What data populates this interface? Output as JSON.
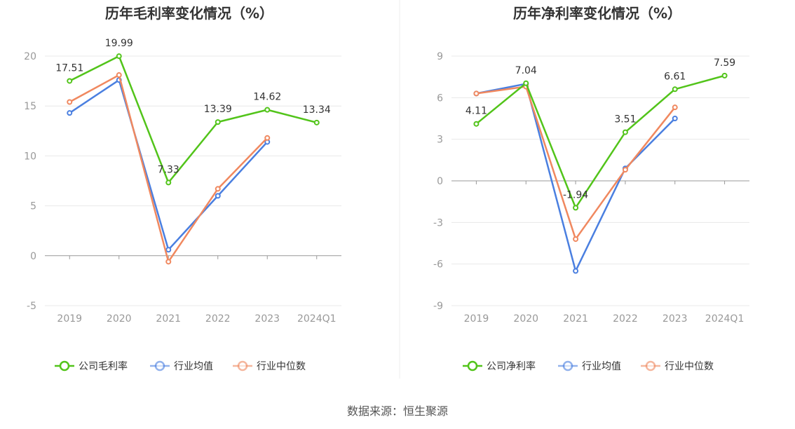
{
  "source": "数据来源：恒生聚源",
  "chart_data": [
    {
      "type": "line",
      "title": "历年毛利率变化情况（%）",
      "categories": [
        "2019",
        "2020",
        "2021",
        "2022",
        "2023",
        "2024Q1"
      ],
      "yticks": [
        20,
        15,
        10,
        5,
        0,
        -5
      ],
      "ylim": [
        -5,
        20
      ],
      "grid": true,
      "legend_position": "bottom",
      "series": [
        {
          "name": "公司毛利率",
          "color": "#52c41a",
          "values": [
            17.51,
            19.99,
            7.33,
            13.39,
            14.62,
            13.34
          ],
          "labels": [
            "17.51",
            "19.99",
            "7.33",
            "13.39",
            "14.62",
            "13.34"
          ]
        },
        {
          "name": "行业均值",
          "color": "#4a7fe0",
          "values": [
            14.3,
            17.6,
            0.6,
            6.0,
            11.4,
            null
          ]
        },
        {
          "name": "行业中位数",
          "color": "#f0885f",
          "values": [
            15.4,
            18.1,
            -0.6,
            6.7,
            11.8,
            null
          ]
        }
      ]
    },
    {
      "type": "line",
      "title": "历年净利率变化情况（%）",
      "categories": [
        "2019",
        "2020",
        "2021",
        "2022",
        "2023",
        "2024Q1"
      ],
      "yticks": [
        9,
        6,
        3,
        0,
        -3,
        -6,
        -9
      ],
      "ylim": [
        -9,
        9
      ],
      "grid": true,
      "legend_position": "bottom",
      "series": [
        {
          "name": "公司净利率",
          "color": "#52c41a",
          "values": [
            4.11,
            7.04,
            -1.94,
            3.51,
            6.61,
            7.59
          ],
          "labels": [
            "4.11",
            "7.04",
            "-1.94",
            "3.51",
            "6.61",
            "7.59"
          ]
        },
        {
          "name": "行业均值",
          "color": "#4a7fe0",
          "values": [
            6.3,
            7.0,
            -6.5,
            0.9,
            4.5,
            null
          ]
        },
        {
          "name": "行业中位数",
          "color": "#f0885f",
          "values": [
            6.3,
            6.8,
            -4.2,
            0.8,
            5.3,
            null
          ]
        }
      ]
    }
  ]
}
